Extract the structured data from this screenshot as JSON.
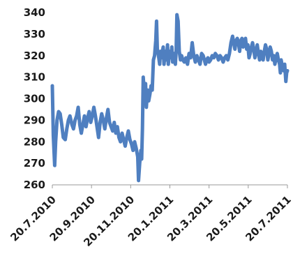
{
  "chart_data": {
    "type": "line",
    "title": "",
    "xlabel": "",
    "ylabel": "",
    "ylim": [
      260,
      340
    ],
    "yticks": [
      260,
      270,
      280,
      290,
      300,
      310,
      320,
      330,
      340
    ],
    "xticks": [
      "20.7.2010",
      "20.9.2010",
      "20.11.2010",
      "20.1.2011",
      "20.3.2011",
      "20.5.2011",
      "20.7.2011"
    ],
    "grid": false,
    "legend": "none",
    "line_color": "#4f7fc0",
    "series": [
      {
        "values": [
          [
            0.0,
            306
          ],
          [
            0.025,
            283
          ],
          [
            0.06,
            269
          ],
          [
            0.085,
            280
          ],
          [
            0.12,
            290
          ],
          [
            0.16,
            294
          ],
          [
            0.2,
            293
          ],
          [
            0.24,
            288
          ],
          [
            0.28,
            282
          ],
          [
            0.33,
            281
          ],
          [
            0.37,
            286
          ],
          [
            0.41,
            290
          ],
          [
            0.45,
            292
          ],
          [
            0.5,
            288
          ],
          [
            0.54,
            286
          ],
          [
            0.58,
            290
          ],
          [
            0.62,
            292
          ],
          [
            0.66,
            296
          ],
          [
            0.7,
            288
          ],
          [
            0.74,
            284
          ],
          [
            0.78,
            288
          ],
          [
            0.82,
            292
          ],
          [
            0.86,
            287
          ],
          [
            0.9,
            291
          ],
          [
            0.94,
            294
          ],
          [
            0.98,
            289
          ],
          [
            1.02,
            292
          ],
          [
            1.06,
            296
          ],
          [
            1.1,
            292
          ],
          [
            1.14,
            287
          ],
          [
            1.18,
            282
          ],
          [
            1.22,
            289
          ],
          [
            1.26,
            293
          ],
          [
            1.3,
            290
          ],
          [
            1.34,
            286
          ],
          [
            1.38,
            291
          ],
          [
            1.42,
            295
          ],
          [
            1.46,
            289
          ],
          [
            1.5,
            287
          ],
          [
            1.54,
            285
          ],
          [
            1.58,
            289
          ],
          [
            1.62,
            284
          ],
          [
            1.66,
            287
          ],
          [
            1.7,
            282
          ],
          [
            1.74,
            280
          ],
          [
            1.78,
            284
          ],
          [
            1.82,
            281
          ],
          [
            1.86,
            278
          ],
          [
            1.9,
            282
          ],
          [
            1.94,
            285
          ],
          [
            1.98,
            281
          ],
          [
            2.02,
            279
          ],
          [
            2.06,
            276
          ],
          [
            2.1,
            280
          ],
          [
            2.14,
            277
          ],
          [
            2.18,
            273
          ],
          [
            2.2,
            262
          ],
          [
            2.23,
            270
          ],
          [
            2.26,
            276
          ],
          [
            2.28,
            272
          ],
          [
            2.3,
            286
          ],
          [
            2.32,
            310
          ],
          [
            2.35,
            302
          ],
          [
            2.38,
            307
          ],
          [
            2.4,
            296
          ],
          [
            2.43,
            304
          ],
          [
            2.46,
            299
          ],
          [
            2.49,
            302
          ],
          [
            2.52,
            306
          ],
          [
            2.55,
            304
          ],
          [
            2.58,
            318
          ],
          [
            2.61,
            320
          ],
          [
            2.64,
            327
          ],
          [
            2.66,
            336
          ],
          [
            2.68,
            323
          ],
          [
            2.71,
            320
          ],
          [
            2.74,
            316
          ],
          [
            2.76,
            322
          ],
          [
            2.78,
            319
          ],
          [
            2.8,
            321
          ],
          [
            2.83,
            324
          ],
          [
            2.85,
            316
          ],
          [
            2.88,
            322
          ],
          [
            2.9,
            318
          ],
          [
            2.92,
            320
          ],
          [
            2.94,
            325
          ],
          [
            2.96,
            316
          ],
          [
            2.98,
            320
          ],
          [
            3.0,
            322
          ],
          [
            3.03,
            319
          ],
          [
            3.05,
            324
          ],
          [
            3.07,
            317
          ],
          [
            3.1,
            321
          ],
          [
            3.12,
            319
          ],
          [
            3.14,
            316
          ],
          [
            3.16,
            322
          ],
          [
            3.18,
            339
          ],
          [
            3.21,
            336
          ],
          [
            3.24,
            322
          ],
          [
            3.27,
            318
          ],
          [
            3.3,
            320
          ],
          [
            3.33,
            318
          ],
          [
            3.37,
            317
          ],
          [
            3.41,
            319
          ],
          [
            3.45,
            316
          ],
          [
            3.49,
            321
          ],
          [
            3.53,
            319
          ],
          [
            3.57,
            326
          ],
          [
            3.61,
            320
          ],
          [
            3.65,
            317
          ],
          [
            3.69,
            320
          ],
          [
            3.73,
            318
          ],
          [
            3.77,
            316
          ],
          [
            3.81,
            321
          ],
          [
            3.85,
            320
          ],
          [
            3.88,
            318
          ],
          [
            3.91,
            316
          ],
          [
            3.94,
            318
          ],
          [
            3.97,
            319
          ],
          [
            4.0,
            317
          ],
          [
            4.04,
            318
          ],
          [
            4.08,
            320
          ],
          [
            4.12,
            319
          ],
          [
            4.16,
            321
          ],
          [
            4.2,
            320
          ],
          [
            4.24,
            318
          ],
          [
            4.28,
            320
          ],
          [
            4.32,
            319
          ],
          [
            4.36,
            317
          ],
          [
            4.4,
            319
          ],
          [
            4.44,
            320
          ],
          [
            4.48,
            318
          ],
          [
            4.52,
            321
          ],
          [
            4.56,
            326
          ],
          [
            4.6,
            329
          ],
          [
            4.63,
            326
          ],
          [
            4.66,
            323
          ],
          [
            4.69,
            327
          ],
          [
            4.72,
            328
          ],
          [
            4.75,
            326
          ],
          [
            4.78,
            322
          ],
          [
            4.81,
            327
          ],
          [
            4.84,
            328
          ],
          [
            4.87,
            324
          ],
          [
            4.9,
            326
          ],
          [
            4.93,
            328
          ],
          [
            4.96,
            323
          ],
          [
            4.99,
            325
          ],
          [
            5.02,
            319
          ],
          [
            5.05,
            321
          ],
          [
            5.08,
            324
          ],
          [
            5.11,
            326
          ],
          [
            5.14,
            323
          ],
          [
            5.17,
            319
          ],
          [
            5.2,
            322
          ],
          [
            5.23,
            325
          ],
          [
            5.26,
            321
          ],
          [
            5.29,
            318
          ],
          [
            5.32,
            322
          ],
          [
            5.35,
            320
          ],
          [
            5.38,
            318
          ],
          [
            5.41,
            322
          ],
          [
            5.44,
            325
          ],
          [
            5.47,
            323
          ],
          [
            5.5,
            318
          ],
          [
            5.53,
            321
          ],
          [
            5.56,
            324
          ],
          [
            5.59,
            322
          ],
          [
            5.62,
            318
          ],
          [
            5.65,
            320
          ],
          [
            5.68,
            316
          ],
          [
            5.71,
            319
          ],
          [
            5.74,
            321
          ],
          [
            5.77,
            318
          ],
          [
            5.8,
            316
          ],
          [
            5.82,
            312
          ],
          [
            5.84,
            318
          ],
          [
            5.87,
            315
          ],
          [
            5.9,
            313
          ],
          [
            5.93,
            316
          ],
          [
            5.96,
            308
          ],
          [
            5.98,
            312
          ],
          [
            6.0,
            313
          ]
        ]
      }
    ]
  }
}
